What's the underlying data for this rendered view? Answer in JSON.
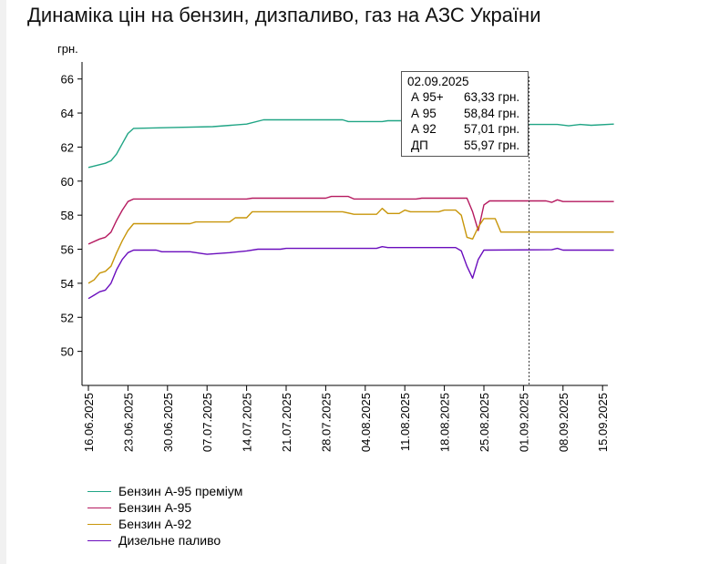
{
  "title": "Динаміка цін на бензин, дизпаливо, газ на АЗС України",
  "tooltip": {
    "date": "02.09.2025",
    "rows": [
      {
        "name": "А 95+",
        "value": "63,33 грн."
      },
      {
        "name": "А 95",
        "value": "58,84 грн."
      },
      {
        "name": "А 92",
        "value": "57,01 грн."
      },
      {
        "name": "ДП",
        "value": "55,97 грн."
      }
    ]
  },
  "legend": [
    {
      "label": "Бензин А-95 преміум",
      "color": "#20a585"
    },
    {
      "label": "Бензин А-95",
      "color": "#b5195f"
    },
    {
      "label": "Бензин А-92",
      "color": "#c8960a"
    },
    {
      "label": "Дизельне паливо",
      "color": "#6a0dbd"
    }
  ],
  "chart_data": {
    "type": "line",
    "ylabel": "грн.",
    "ylim": [
      48,
      67
    ],
    "yticks": [
      50,
      52,
      54,
      56,
      58,
      60,
      62,
      64,
      66
    ],
    "x_start": "16.06.2025",
    "x_end": "17.09.2025",
    "xticks": [
      "16.06.2025",
      "23.06.2025",
      "30.06.2025",
      "07.07.2025",
      "14.07.2025",
      "21.07.2025",
      "28.07.2025",
      "04.08.2025",
      "11.08.2025",
      "18.08.2025",
      "25.08.2025",
      "01.09.2025",
      "08.09.2025",
      "15.09.2025"
    ],
    "grid": false,
    "legend_position": "bottom-left",
    "crosshair_date": "02.09.2025",
    "series": [
      {
        "name": "Бензин А-95 преміум",
        "color": "#20a585",
        "points": [
          [
            "16.06.2025",
            60.8
          ],
          [
            "19.06.2025",
            61.05
          ],
          [
            "20.06.2025",
            61.2
          ],
          [
            "21.06.2025",
            61.6
          ],
          [
            "22.06.2025",
            62.2
          ],
          [
            "23.06.2025",
            62.8
          ],
          [
            "24.06.2025",
            63.1
          ],
          [
            "01.07.2025",
            63.15
          ],
          [
            "08.07.2025",
            63.2
          ],
          [
            "14.07.2025",
            63.35
          ],
          [
            "17.07.2025",
            63.6
          ],
          [
            "31.07.2025",
            63.6
          ],
          [
            "01.08.2025",
            63.5
          ],
          [
            "07.08.2025",
            63.5
          ],
          [
            "08.08.2025",
            63.55
          ],
          [
            "24.08.2025",
            63.55
          ],
          [
            "25.08.2025",
            63.4
          ],
          [
            "01.09.2025",
            63.33
          ],
          [
            "07.09.2025",
            63.33
          ],
          [
            "09.09.2025",
            63.25
          ],
          [
            "11.09.2025",
            63.33
          ],
          [
            "13.09.2025",
            63.28
          ],
          [
            "17.09.2025",
            63.35
          ]
        ]
      },
      {
        "name": "Бензин А-95",
        "color": "#b5195f",
        "points": [
          [
            "16.06.2025",
            56.3
          ],
          [
            "18.06.2025",
            56.6
          ],
          [
            "19.06.2025",
            56.7
          ],
          [
            "20.06.2025",
            57.0
          ],
          [
            "21.06.2025",
            57.7
          ],
          [
            "22.06.2025",
            58.3
          ],
          [
            "23.06.2025",
            58.8
          ],
          [
            "24.06.2025",
            58.95
          ],
          [
            "14.07.2025",
            58.95
          ],
          [
            "15.07.2025",
            59.0
          ],
          [
            "28.07.2025",
            59.0
          ],
          [
            "29.07.2025",
            59.1
          ],
          [
            "01.08.2025",
            59.1
          ],
          [
            "02.08.2025",
            58.95
          ],
          [
            "13.08.2025",
            58.95
          ],
          [
            "14.08.2025",
            59.0
          ],
          [
            "22.08.2025",
            59.0
          ],
          [
            "23.08.2025",
            58.2
          ],
          [
            "24.08.2025",
            57.1
          ],
          [
            "25.08.2025",
            58.6
          ],
          [
            "26.08.2025",
            58.84
          ],
          [
            "05.09.2025",
            58.84
          ],
          [
            "06.09.2025",
            58.75
          ],
          [
            "07.09.2025",
            58.9
          ],
          [
            "08.09.2025",
            58.8
          ],
          [
            "17.09.2025",
            58.8
          ]
        ]
      },
      {
        "name": "Бензин А-92",
        "color": "#c8960a",
        "points": [
          [
            "16.06.2025",
            54.0
          ],
          [
            "17.06.2025",
            54.2
          ],
          [
            "18.06.2025",
            54.6
          ],
          [
            "19.06.2025",
            54.7
          ],
          [
            "20.06.2025",
            55.0
          ],
          [
            "21.06.2025",
            55.8
          ],
          [
            "22.06.2025",
            56.5
          ],
          [
            "23.06.2025",
            57.1
          ],
          [
            "24.06.2025",
            57.5
          ],
          [
            "04.07.2025",
            57.5
          ],
          [
            "05.07.2025",
            57.6
          ],
          [
            "11.07.2025",
            57.6
          ],
          [
            "12.07.2025",
            57.85
          ],
          [
            "14.07.2025",
            57.85
          ],
          [
            "15.07.2025",
            58.2
          ],
          [
            "31.07.2025",
            58.2
          ],
          [
            "02.08.2025",
            58.05
          ],
          [
            "06.08.2025",
            58.05
          ],
          [
            "07.08.2025",
            58.4
          ],
          [
            "08.08.2025",
            58.1
          ],
          [
            "10.08.2025",
            58.1
          ],
          [
            "11.08.2025",
            58.3
          ],
          [
            "12.08.2025",
            58.2
          ],
          [
            "17.08.2025",
            58.2
          ],
          [
            "18.08.2025",
            58.3
          ],
          [
            "20.08.2025",
            58.3
          ],
          [
            "21.08.2025",
            58.0
          ],
          [
            "22.08.2025",
            56.7
          ],
          [
            "23.08.2025",
            56.6
          ],
          [
            "24.08.2025",
            57.3
          ],
          [
            "25.08.2025",
            57.8
          ],
          [
            "27.08.2025",
            57.8
          ],
          [
            "28.08.2025",
            57.01
          ],
          [
            "17.09.2025",
            57.01
          ]
        ]
      },
      {
        "name": "Дизельне паливо",
        "color": "#6a0dbd",
        "points": [
          [
            "16.06.2025",
            53.1
          ],
          [
            "17.06.2025",
            53.3
          ],
          [
            "18.06.2025",
            53.5
          ],
          [
            "19.06.2025",
            53.6
          ],
          [
            "20.06.2025",
            54.0
          ],
          [
            "21.06.2025",
            54.8
          ],
          [
            "22.06.2025",
            55.4
          ],
          [
            "23.06.2025",
            55.8
          ],
          [
            "24.06.2025",
            55.95
          ],
          [
            "28.06.2025",
            55.95
          ],
          [
            "29.06.2025",
            55.85
          ],
          [
            "04.07.2025",
            55.85
          ],
          [
            "06.07.2025",
            55.75
          ],
          [
            "07.07.2025",
            55.7
          ],
          [
            "09.07.2025",
            55.75
          ],
          [
            "11.07.2025",
            55.8
          ],
          [
            "14.07.2025",
            55.9
          ],
          [
            "16.07.2025",
            56.0
          ],
          [
            "20.07.2025",
            56.0
          ],
          [
            "21.07.2025",
            56.05
          ],
          [
            "06.08.2025",
            56.05
          ],
          [
            "07.08.2025",
            56.15
          ],
          [
            "08.08.2025",
            56.1
          ],
          [
            "20.08.2025",
            56.1
          ],
          [
            "21.08.2025",
            55.9
          ],
          [
            "22.08.2025",
            55.0
          ],
          [
            "23.08.2025",
            54.3
          ],
          [
            "24.08.2025",
            55.4
          ],
          [
            "25.08.2025",
            55.95
          ],
          [
            "06.09.2025",
            55.97
          ],
          [
            "07.09.2025",
            56.05
          ],
          [
            "08.09.2025",
            55.95
          ],
          [
            "17.09.2025",
            55.95
          ]
        ]
      }
    ]
  }
}
